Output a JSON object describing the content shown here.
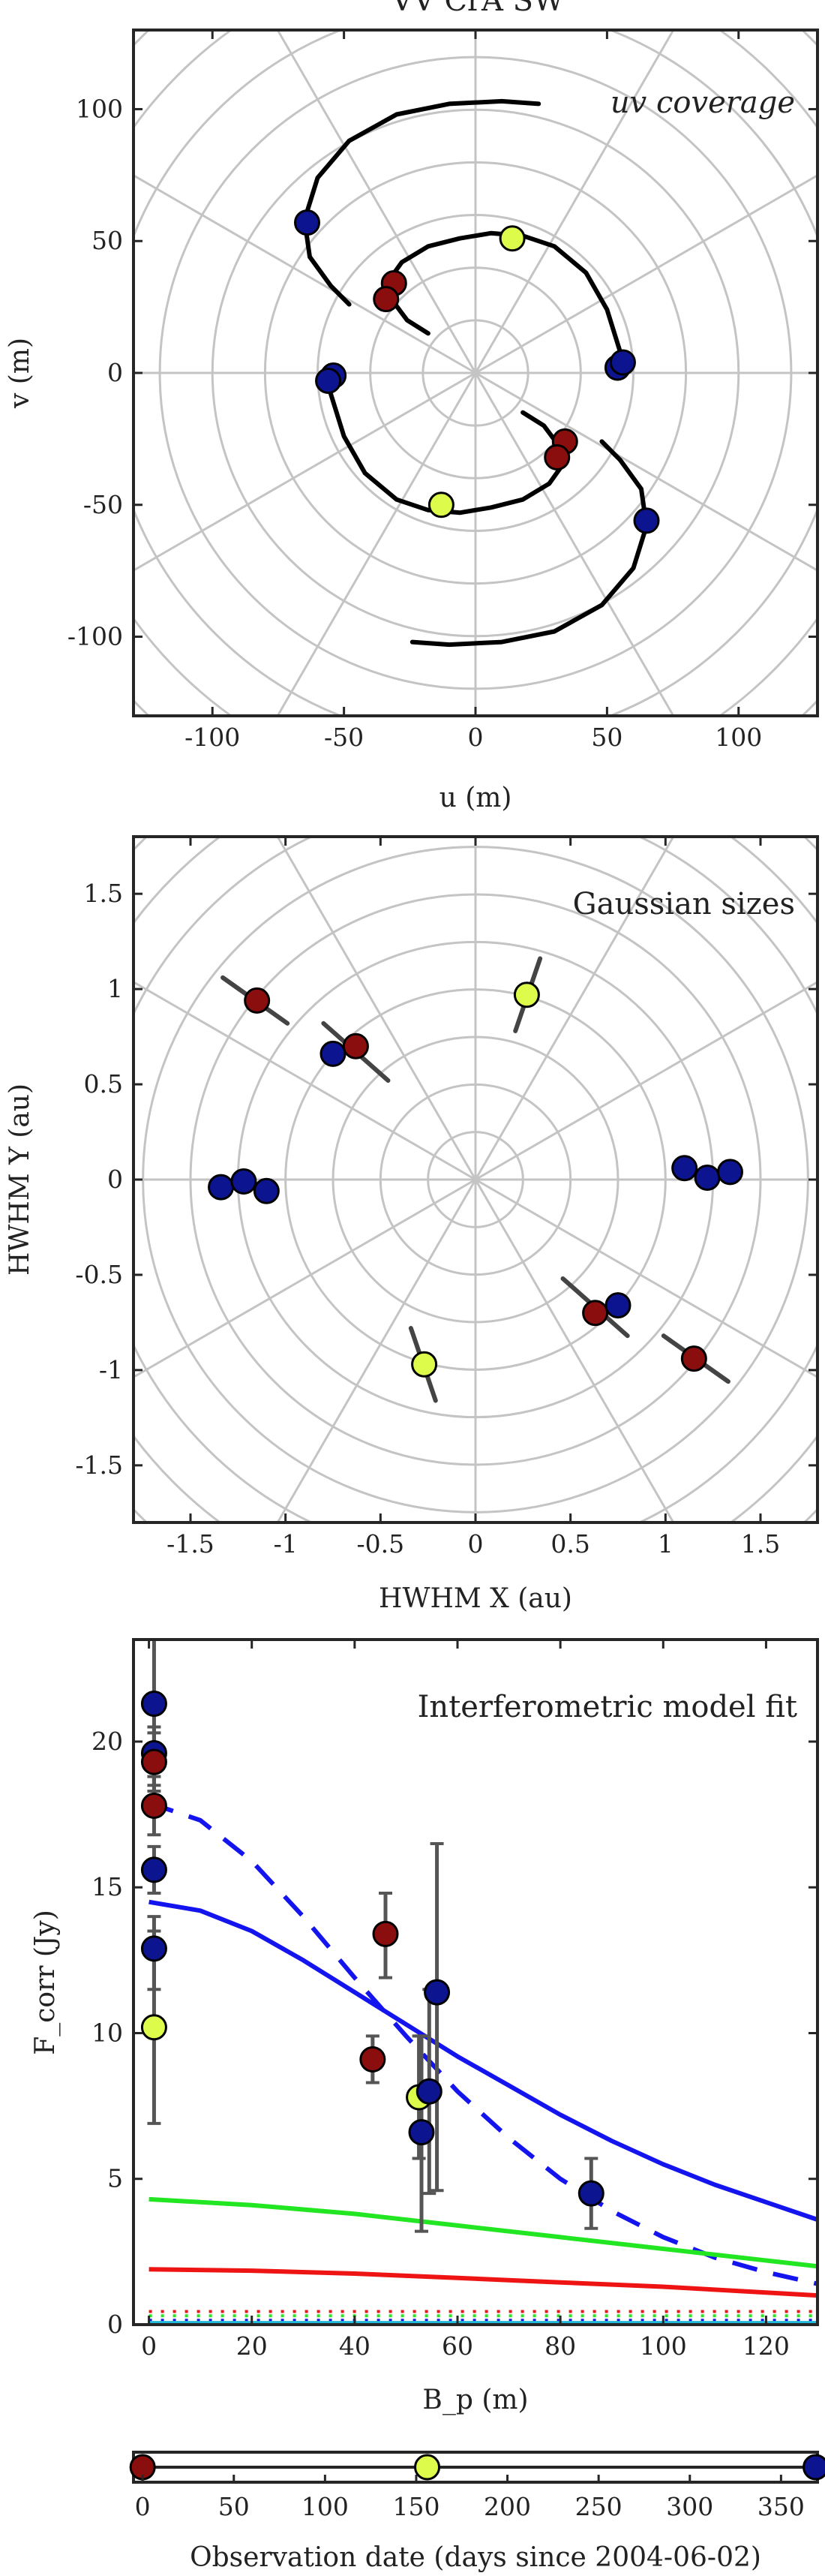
{
  "figure_title": "VV CrA SW",
  "colors": {
    "epoch_1": "#8b0e0e",
    "epoch_2": "#ddfb4a",
    "epoch_3": "#0d1490",
    "track": "#000000",
    "ellipse_bar": "#444444",
    "errorbar": "#555555",
    "model_total": "#1414ee",
    "model_green": "#22e622",
    "model_red": "#ee1414",
    "grid": "#c4c4c4"
  },
  "chart_data": [
    {
      "type": "scatter",
      "annotation": "uv coverage",
      "xlabel": "u (m)",
      "ylabel": "v (m)",
      "xlim": [
        -130,
        130
      ],
      "ylim": [
        -130,
        130
      ],
      "xticks": [
        -100,
        -50,
        0,
        50,
        100
      ],
      "yticks": [
        -100,
        -50,
        0,
        50,
        100
      ],
      "grid": "polar",
      "grid_radii": [
        20,
        40,
        60,
        80,
        100,
        120,
        140,
        160,
        180
      ],
      "tracks": [
        [
          [
            24,
            102
          ],
          [
            10,
            103
          ],
          [
            -10,
            102
          ],
          [
            -30,
            98
          ],
          [
            -48,
            88
          ],
          [
            -60,
            74
          ],
          [
            -65,
            58
          ],
          [
            -63,
            44
          ],
          [
            -55,
            33
          ],
          [
            -48,
            26
          ]
        ],
        [
          [
            -18,
            15
          ],
          [
            -26,
            20
          ],
          [
            -32,
            28
          ],
          [
            -33,
            35
          ],
          [
            -28,
            42
          ],
          [
            -18,
            48
          ],
          [
            -6,
            51
          ],
          [
            6,
            53
          ],
          [
            18,
            52
          ],
          [
            30,
            48
          ],
          [
            42,
            38
          ],
          [
            50,
            24
          ],
          [
            55,
            8
          ],
          [
            55,
            0
          ]
        ],
        [
          [
            -24,
            -102
          ],
          [
            -10,
            -103
          ],
          [
            10,
            -102
          ],
          [
            30,
            -98
          ],
          [
            48,
            -88
          ],
          [
            60,
            -74
          ],
          [
            65,
            -58
          ],
          [
            63,
            -44
          ],
          [
            55,
            -33
          ],
          [
            48,
            -26
          ]
        ],
        [
          [
            18,
            -15
          ],
          [
            26,
            -20
          ],
          [
            32,
            -28
          ],
          [
            33,
            -35
          ],
          [
            28,
            -42
          ],
          [
            18,
            -48
          ],
          [
            6,
            -51
          ],
          [
            -6,
            -53
          ],
          [
            -18,
            -52
          ],
          [
            -30,
            -48
          ],
          [
            -42,
            -38
          ],
          [
            -50,
            -24
          ],
          [
            -55,
            -8
          ],
          [
            -55,
            0
          ]
        ]
      ],
      "points": [
        {
          "u": -64,
          "v": 57,
          "epoch": 3
        },
        {
          "u": -31,
          "v": 34,
          "epoch": 1
        },
        {
          "u": -34,
          "v": 28,
          "epoch": 1
        },
        {
          "u": 14,
          "v": 51,
          "epoch": 2
        },
        {
          "u": -54,
          "v": -1,
          "epoch": 3
        },
        {
          "u": -56,
          "v": -3,
          "epoch": 3
        },
        {
          "u": 54,
          "v": 2,
          "epoch": 3
        },
        {
          "u": 56,
          "v": 4,
          "epoch": 3
        },
        {
          "u": 34,
          "v": -26,
          "epoch": 1
        },
        {
          "u": 31,
          "v": -32,
          "epoch": 1
        },
        {
          "u": -13,
          "v": -50,
          "epoch": 2
        },
        {
          "u": 65,
          "v": -56,
          "epoch": 3
        }
      ]
    },
    {
      "type": "scatter",
      "annotation": "Gaussian sizes",
      "xlabel": "HWHM X (au)",
      "ylabel": "HWHM Y (au)",
      "xlim": [
        -1.8,
        1.8
      ],
      "ylim": [
        -1.8,
        1.8
      ],
      "xticks": [
        -1.5,
        -1,
        -0.5,
        0,
        0.5,
        1,
        1.5
      ],
      "yticks": [
        -1.5,
        -1,
        -0.5,
        0,
        0.5,
        1,
        1.5
      ],
      "grid": "polar",
      "grid_radii": [
        0.25,
        0.5,
        0.75,
        1.0,
        1.25,
        1.5,
        1.75,
        2.0,
        2.25,
        2.5
      ],
      "bars": [
        [
          [
            -1.33,
            1.06
          ],
          [
            -0.99,
            0.82
          ]
        ],
        [
          [
            -0.8,
            0.82
          ],
          [
            -0.46,
            0.52
          ]
        ],
        [
          [
            0.34,
            1.16
          ],
          [
            0.21,
            0.78
          ]
        ],
        [
          [
            -0.34,
            -0.78
          ],
          [
            -0.21,
            -1.16
          ]
        ],
        [
          [
            0.46,
            -0.52
          ],
          [
            0.8,
            -0.82
          ]
        ],
        [
          [
            0.99,
            -0.82
          ],
          [
            1.33,
            -1.06
          ]
        ]
      ],
      "points": [
        {
          "x": -1.15,
          "y": 0.94,
          "epoch": 1
        },
        {
          "x": -0.75,
          "y": 0.66,
          "epoch": 3
        },
        {
          "x": -0.63,
          "y": 0.7,
          "epoch": 1
        },
        {
          "x": 0.27,
          "y": 0.97,
          "epoch": 2
        },
        {
          "x": -1.34,
          "y": -0.04,
          "epoch": 3
        },
        {
          "x": -1.22,
          "y": -0.01,
          "epoch": 3
        },
        {
          "x": -1.1,
          "y": -0.06,
          "epoch": 3
        },
        {
          "x": 1.1,
          "y": 0.06,
          "epoch": 3
        },
        {
          "x": 1.22,
          "y": 0.01,
          "epoch": 3
        },
        {
          "x": 1.34,
          "y": 0.04,
          "epoch": 3
        },
        {
          "x": -0.27,
          "y": -0.97,
          "epoch": 2
        },
        {
          "x": 0.63,
          "y": -0.7,
          "epoch": 1
        },
        {
          "x": 0.75,
          "y": -0.66,
          "epoch": 3
        },
        {
          "x": 1.15,
          "y": -0.94,
          "epoch": 1
        }
      ]
    },
    {
      "type": "line",
      "annotation": "Interferometric model fit",
      "xlabel": "B_p (m)",
      "ylabel": "F_corr (Jy)",
      "xlim": [
        -3,
        130
      ],
      "ylim": [
        0,
        23.5
      ],
      "xticks": [
        0,
        20,
        40,
        60,
        80,
        100,
        120
      ],
      "yticks": [
        0,
        5,
        10,
        15,
        20
      ],
      "series": [
        {
          "style": "solid",
          "color": "#1414ee",
          "x": [
            0,
            10,
            20,
            30,
            40,
            50,
            60,
            70,
            80,
            90,
            100,
            110,
            120,
            130
          ],
          "y": [
            14.5,
            14.2,
            13.5,
            12.5,
            11.4,
            10.3,
            9.2,
            8.2,
            7.2,
            6.3,
            5.5,
            4.8,
            4.2,
            3.6
          ]
        },
        {
          "style": "dashed",
          "color": "#1414ee",
          "x": [
            0,
            10,
            20,
            30,
            40,
            50,
            60,
            70,
            80,
            90,
            100,
            110,
            120,
            130
          ],
          "y": [
            17.9,
            17.3,
            15.9,
            14.0,
            11.9,
            9.9,
            8.0,
            6.4,
            5.0,
            3.9,
            3.0,
            2.3,
            1.8,
            1.4
          ]
        },
        {
          "style": "solid",
          "color": "#22e622",
          "x": [
            0,
            20,
            40,
            60,
            80,
            100,
            120,
            130
          ],
          "y": [
            4.3,
            4.1,
            3.8,
            3.4,
            3.0,
            2.6,
            2.2,
            2.0
          ]
        },
        {
          "style": "solid",
          "color": "#ee1414",
          "x": [
            0,
            20,
            40,
            60,
            80,
            100,
            120,
            130
          ],
          "y": [
            1.9,
            1.85,
            1.75,
            1.6,
            1.45,
            1.3,
            1.1,
            1.0
          ]
        },
        {
          "style": "dotted",
          "color": "#ee1414",
          "x": [
            0,
            130
          ],
          "y": [
            0.45,
            0.45
          ]
        },
        {
          "style": "dotted",
          "color": "#22e622",
          "x": [
            0,
            130
          ],
          "y": [
            0.3,
            0.3
          ]
        },
        {
          "style": "dotted",
          "color": "#1414ee",
          "x": [
            0,
            130
          ],
          "y": [
            0.15,
            0.15
          ]
        },
        {
          "style": "solid",
          "color": "#22b8d8",
          "x": [
            0,
            130
          ],
          "y": [
            0.05,
            0.05
          ]
        }
      ],
      "points": [
        {
          "x": 1.0,
          "y": 21.3,
          "lo": 19.5,
          "hi": 23.5,
          "epoch": 3
        },
        {
          "x": 1.0,
          "y": 19.6,
          "lo": 18.5,
          "hi": 20.5,
          "epoch": 3
        },
        {
          "x": 1.0,
          "y": 19.3,
          "lo": 18.3,
          "hi": 20.3,
          "epoch": 1
        },
        {
          "x": 1.0,
          "y": 17.8,
          "lo": 16.8,
          "hi": 18.8,
          "epoch": 1
        },
        {
          "x": 1.0,
          "y": 15.6,
          "lo": 14.8,
          "hi": 16.4,
          "epoch": 3
        },
        {
          "x": 1.0,
          "y": 12.9,
          "lo": 11.5,
          "hi": 14.0,
          "epoch": 3
        },
        {
          "x": 1.0,
          "y": 10.2,
          "lo": 6.9,
          "hi": 13.5,
          "epoch": 2
        },
        {
          "x": 43.5,
          "y": 9.1,
          "lo": 8.3,
          "hi": 9.9,
          "epoch": 1
        },
        {
          "x": 46.0,
          "y": 13.4,
          "lo": 11.9,
          "hi": 14.8,
          "epoch": 1
        },
        {
          "x": 52.5,
          "y": 7.8,
          "lo": 5.7,
          "hi": 9.9,
          "epoch": 2
        },
        {
          "x": 53.0,
          "y": 6.6,
          "lo": 3.2,
          "hi": 9.9,
          "epoch": 3
        },
        {
          "x": 54.5,
          "y": 8.0,
          "lo": 4.5,
          "hi": 11.5,
          "epoch": 3
        },
        {
          "x": 56.0,
          "y": 11.4,
          "lo": 4.6,
          "hi": 16.5,
          "epoch": 3
        },
        {
          "x": 86.0,
          "y": 4.5,
          "lo": 3.3,
          "hi": 5.7,
          "epoch": 3
        }
      ]
    },
    {
      "type": "scatter",
      "xlabel": "Observation date (days since 2004-06-02)",
      "xlim": [
        -5,
        370
      ],
      "xticks": [
        0,
        50,
        100,
        150,
        200,
        250,
        300,
        350
      ],
      "points": [
        {
          "x": 0,
          "epoch": 1
        },
        {
          "x": 156,
          "epoch": 2
        },
        {
          "x": 369,
          "epoch": 3
        }
      ]
    }
  ]
}
